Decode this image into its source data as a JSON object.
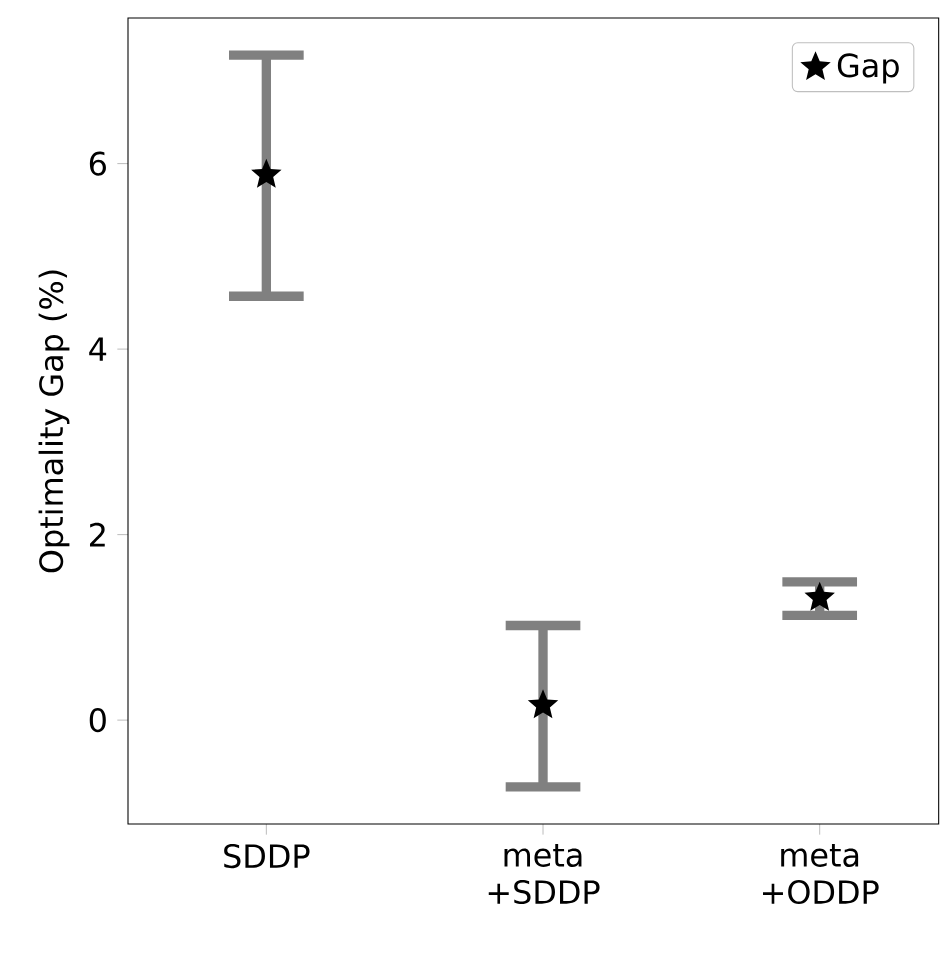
{
  "chart_data": {
    "type": "scatter",
    "ylabel": "Optimality Gap (%)",
    "categories": [
      "SDDP",
      "meta +SDDP",
      "meta +ODDP"
    ],
    "series": [
      {
        "name": "Gap",
        "color": "#000000",
        "values": [
          5.88,
          0.16,
          1.32
        ],
        "errors": [
          [
            4.57,
            7.17
          ],
          [
            -0.72,
            1.02
          ],
          [
            1.13,
            1.49
          ]
        ]
      }
    ],
    "ylim": [
      -1.12,
      7.57
    ],
    "yticks": [
      0,
      2,
      4,
      6
    ],
    "legend": "top right",
    "marker": "star",
    "grid": false
  }
}
